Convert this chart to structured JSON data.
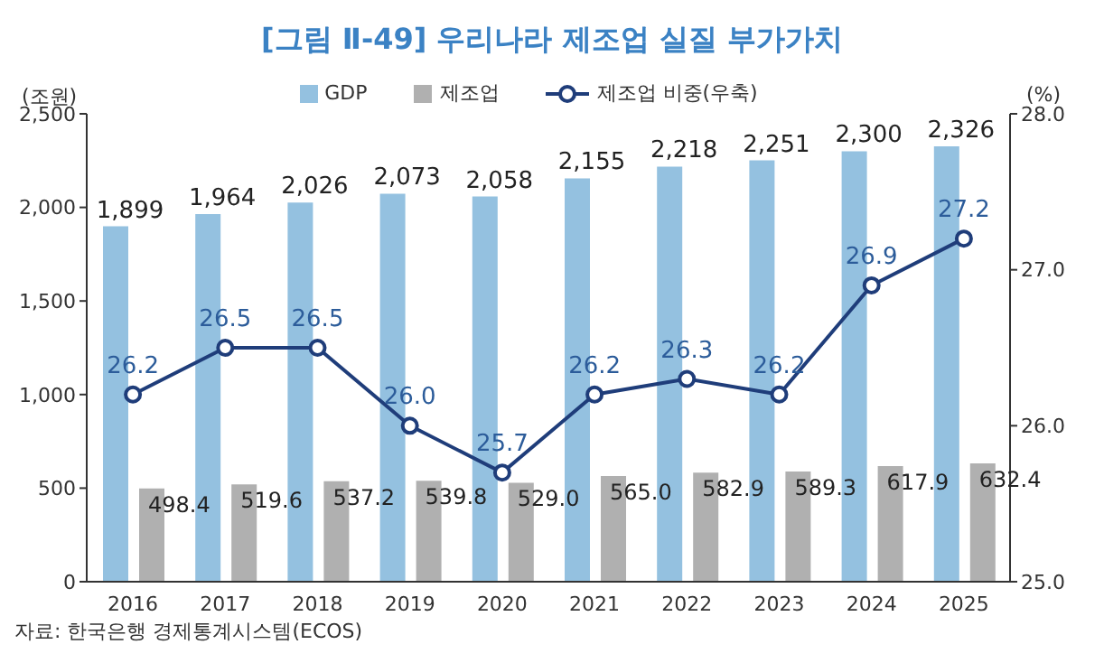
{
  "chart_data": {
    "type": "bar",
    "title": "[그림 Ⅱ-49] 우리나라 제조업 실질 부가가치",
    "ylabel": "(조원)",
    "y2label": "(%)",
    "categories": [
      "2016",
      "2017",
      "2018",
      "2019",
      "2020",
      "2021",
      "2022",
      "2023",
      "2024",
      "2025"
    ],
    "series": [
      {
        "name": "GDP",
        "color": "#94c1e0",
        "values": [
          1899,
          1964,
          2026,
          2073,
          2058,
          2155,
          2218,
          2251,
          2300,
          2326
        ],
        "value_labels": [
          "1,899",
          "1,964",
          "2,026",
          "2,073",
          "2,058",
          "2,155",
          "2,218",
          "2,251",
          "2,300",
          "2,326"
        ]
      },
      {
        "name": "제조업",
        "color": "#b0b0b0",
        "values": [
          498.4,
          519.6,
          537.2,
          539.8,
          529.0,
          565.0,
          582.9,
          589.3,
          617.9,
          632.4
        ],
        "value_labels": [
          "498.4",
          "519.6",
          "537.2",
          "539.8",
          "529.0",
          "565.0",
          "582.9",
          "589.3",
          "617.9",
          "632.4"
        ]
      },
      {
        "name": "제조업 비중(우축)",
        "type": "line",
        "axis": "y2",
        "color": "#1f3d7a",
        "marker": "circle",
        "values": [
          26.2,
          26.5,
          26.5,
          26.0,
          25.7,
          26.2,
          26.3,
          26.2,
          26.9,
          27.2
        ],
        "value_labels": [
          "26.2",
          "26.5",
          "26.5",
          "26.0",
          "25.7",
          "26.2",
          "26.3",
          "26.2",
          "26.9",
          "27.2"
        ]
      }
    ],
    "ylim": [
      0,
      2500
    ],
    "yticks": [
      0,
      {
        "value": 500,
        "label": "500"
      },
      {
        "value": 1000,
        "label": "1,000"
      },
      {
        "value": 1500,
        "label": "1,500"
      },
      {
        "value": 2000,
        "label": "2,000"
      },
      {
        "value": 2500,
        "label": "2,500"
      }
    ],
    "y2lim": [
      25,
      28
    ],
    "y2ticks": [
      {
        "value": 25,
        "label": "25.0"
      },
      {
        "value": 26,
        "label": "26.0"
      },
      {
        "value": 27,
        "label": "27.0"
      },
      {
        "value": 28,
        "label": "28.0"
      }
    ],
    "legend": "top",
    "annotations": [
      "자료: 한국은행 경제통계시스템(ECOS)"
    ]
  }
}
